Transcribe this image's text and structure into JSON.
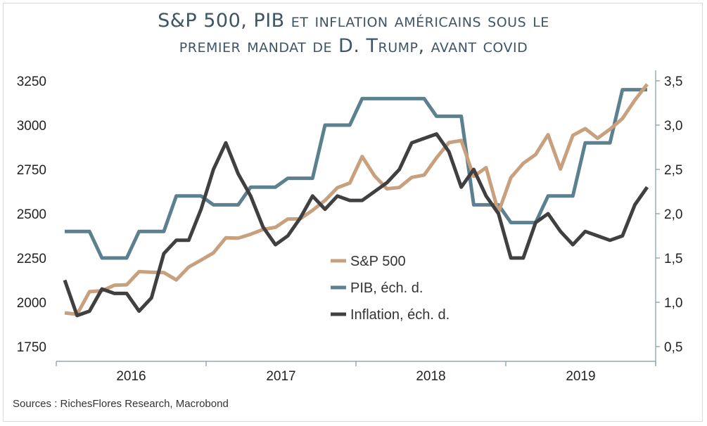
{
  "title_line1": "S&P 500, PIB et inflation américains sous le",
  "title_line2": "premier mandat de D. Trump, avant covid",
  "source": "Sources : RichesFlores Research, Macrobond",
  "chart_data": {
    "type": "line",
    "x_tick_labels": [
      "2016",
      "2017",
      "2018",
      "2019"
    ],
    "y_left": {
      "ticks": [
        "1750",
        "2000",
        "2250",
        "2500",
        "2750",
        "3000",
        "3250"
      ],
      "range": [
        1750,
        3250
      ]
    },
    "y_right": {
      "ticks": [
        "0,5",
        "1,0",
        "1,5",
        "2,0",
        "2,5",
        "3,0",
        "3,5"
      ],
      "range": [
        0.5,
        3.5
      ]
    },
    "x_start": "2016-01",
    "x_end": "2019-12",
    "legend_position": "center",
    "series": [
      {
        "name": "S&P 500",
        "axis": "left",
        "color": "#c8a07e",
        "x": [
          "2016-01",
          "2016-02",
          "2016-03",
          "2016-04",
          "2016-05",
          "2016-06",
          "2016-07",
          "2016-08",
          "2016-09",
          "2016-10",
          "2016-11",
          "2016-12",
          "2017-01",
          "2017-02",
          "2017-03",
          "2017-04",
          "2017-05",
          "2017-06",
          "2017-07",
          "2017-08",
          "2017-09",
          "2017-10",
          "2017-11",
          "2017-12",
          "2018-01",
          "2018-02",
          "2018-03",
          "2018-04",
          "2018-05",
          "2018-06",
          "2018-07",
          "2018-08",
          "2018-09",
          "2018-10",
          "2018-11",
          "2018-12",
          "2019-01",
          "2019-02",
          "2019-03",
          "2019-04",
          "2019-05",
          "2019-06",
          "2019-07",
          "2019-08",
          "2019-09",
          "2019-10",
          "2019-11",
          "2019-12"
        ],
        "values": [
          1940,
          1932,
          2060,
          2065,
          2096,
          2099,
          2173,
          2170,
          2168,
          2126,
          2199,
          2238,
          2279,
          2364,
          2362,
          2384,
          2411,
          2423,
          2470,
          2471,
          2519,
          2575,
          2647,
          2673,
          2823,
          2714,
          2641,
          2648,
          2705,
          2718,
          2816,
          2901,
          2913,
          2711,
          2760,
          2507,
          2704,
          2784,
          2834,
          2946,
          2752,
          2942,
          2980,
          2926,
          2977,
          3037,
          3141,
          3231
        ]
      },
      {
        "name": "PIB, éch. d.",
        "axis": "right",
        "color": "#5b8090",
        "x": [
          "2016-01",
          "2016-03",
          "2016-04",
          "2016-06",
          "2016-07",
          "2016-09",
          "2016-10",
          "2016-12",
          "2017-01",
          "2017-03",
          "2017-04",
          "2017-06",
          "2017-07",
          "2017-09",
          "2017-10",
          "2017-12",
          "2018-01",
          "2018-03",
          "2018-04",
          "2018-06",
          "2018-07",
          "2018-09",
          "2018-10",
          "2018-12",
          "2019-01",
          "2019-03",
          "2019-04",
          "2019-06",
          "2019-07",
          "2019-09",
          "2019-10",
          "2019-12"
        ],
        "values": [
          1.8,
          1.8,
          1.5,
          1.5,
          1.8,
          1.8,
          2.2,
          2.2,
          2.1,
          2.1,
          2.3,
          2.3,
          2.4,
          2.4,
          3.0,
          3.0,
          3.3,
          3.3,
          3.3,
          3.3,
          3.1,
          3.1,
          2.1,
          2.1,
          1.9,
          1.9,
          2.2,
          2.2,
          2.8,
          2.8,
          3.4,
          3.4
        ]
      },
      {
        "name": "Inflation, éch. d.",
        "axis": "right",
        "color": "#404040",
        "x": [
          "2016-01",
          "2016-02",
          "2016-03",
          "2016-04",
          "2016-05",
          "2016-06",
          "2016-07",
          "2016-08",
          "2016-09",
          "2016-10",
          "2016-11",
          "2016-12",
          "2017-01",
          "2017-02",
          "2017-03",
          "2017-04",
          "2017-05",
          "2017-06",
          "2017-07",
          "2017-08",
          "2017-09",
          "2017-10",
          "2017-11",
          "2017-12",
          "2018-01",
          "2018-02",
          "2018-03",
          "2018-04",
          "2018-05",
          "2018-06",
          "2018-07",
          "2018-08",
          "2018-09",
          "2018-10",
          "2018-11",
          "2018-12",
          "2019-01",
          "2019-02",
          "2019-03",
          "2019-04",
          "2019-05",
          "2019-06",
          "2019-07",
          "2019-08",
          "2019-09",
          "2019-10",
          "2019-11",
          "2019-12"
        ],
        "values": [
          1.25,
          0.85,
          0.9,
          1.15,
          1.1,
          1.1,
          0.9,
          1.05,
          1.55,
          1.7,
          1.7,
          2.05,
          2.5,
          2.8,
          2.45,
          2.2,
          1.85,
          1.65,
          1.75,
          1.95,
          2.2,
          2.05,
          2.2,
          2.15,
          2.15,
          2.25,
          2.35,
          2.5,
          2.8,
          2.85,
          2.9,
          2.7,
          2.3,
          2.5,
          2.2,
          2.0,
          1.5,
          1.5,
          1.9,
          2.0,
          1.8,
          1.65,
          1.8,
          1.75,
          1.7,
          1.75,
          2.1,
          2.3
        ]
      }
    ]
  }
}
